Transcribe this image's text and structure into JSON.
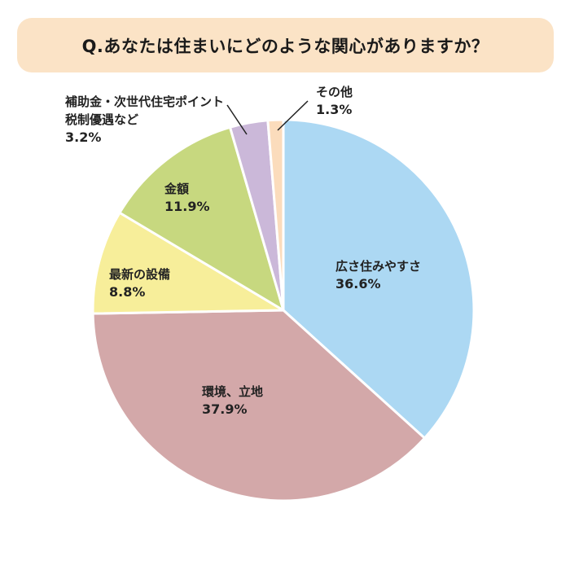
{
  "title": "Q.あなたは住まいにどのような関心がありますか？",
  "chart_data": {
    "type": "pie",
    "title": "Q.あなたは住まいにどのような関心がありますか？",
    "start_angle_deg": 0,
    "direction": "clockwise",
    "slices": [
      {
        "label": "広さ住みやすさ",
        "value": 36.6,
        "value_label": "36.6%",
        "color": "#acd8f3"
      },
      {
        "label": "環境、立地",
        "value": 37.9,
        "value_label": "37.9%",
        "color": "#d3a8a9"
      },
      {
        "label": "最新の設備",
        "value": 8.8,
        "value_label": "8.8%",
        "color": "#f7ee9a"
      },
      {
        "label": "金額",
        "value": 11.9,
        "value_label": "11.9%",
        "color": "#c7d87f"
      },
      {
        "label": "補助金・次世代住宅ポイント 税制優遇など",
        "label_lines": [
          "補助金・次世代住宅ポイント",
          "税制優遇など"
        ],
        "value": 3.2,
        "value_label": "3.2%",
        "color": "#cbb8d9"
      },
      {
        "label": "その他",
        "value": 1.3,
        "value_label": "1.3%",
        "color": "#fbdcbc"
      }
    ]
  }
}
